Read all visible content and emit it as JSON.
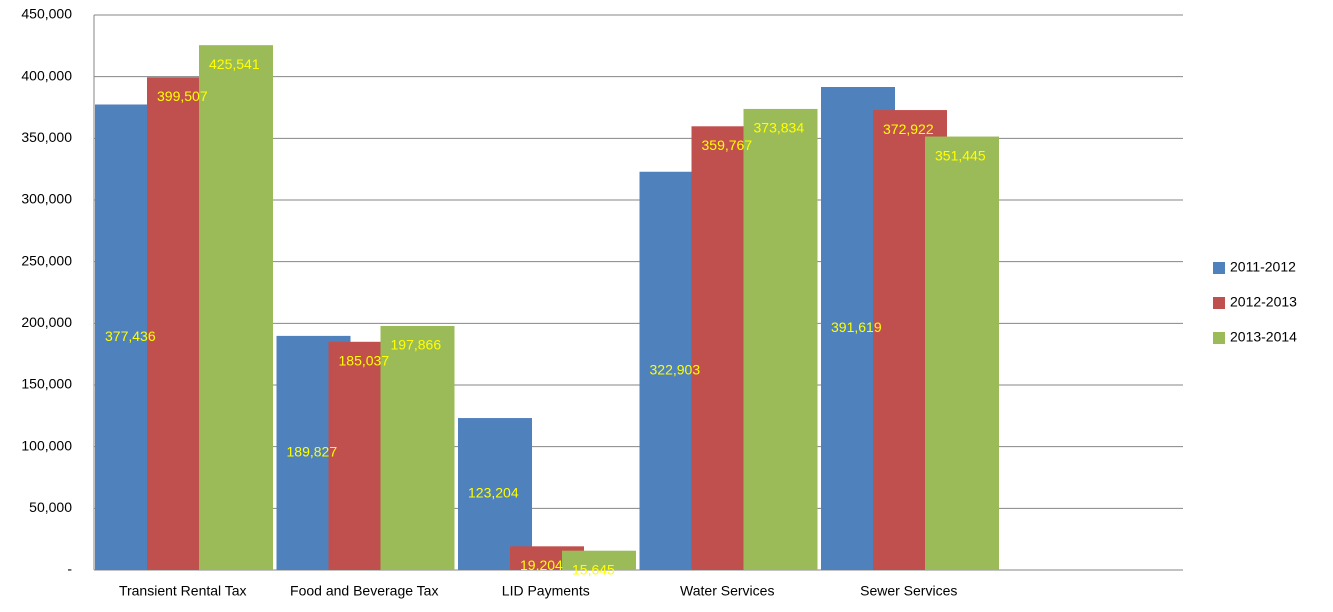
{
  "chart_data": {
    "type": "bar",
    "categories": [
      "Transient Rental Tax",
      "Food and Beverage Tax",
      "LID Payments",
      "Water Services",
      "Sewer Services",
      null
    ],
    "series": [
      {
        "name": "2011-2012",
        "color": "#4f81bd",
        "values": [
          377436,
          189827,
          123204,
          322903,
          391619,
          null
        ],
        "value_labels": [
          "377,436",
          "189,827",
          "123,204",
          "322,903",
          "391,619",
          null
        ]
      },
      {
        "name": "2012-2013",
        "color": "#c0504d",
        "values": [
          399507,
          185037,
          19204,
          359767,
          372922,
          null
        ],
        "value_labels": [
          "399,507",
          "185,037",
          "19,204",
          "359,767",
          "372,922",
          null
        ]
      },
      {
        "name": "2013-2014",
        "color": "#9bbb59",
        "values": [
          425541,
          197866,
          15645,
          373834,
          351445,
          null
        ],
        "value_labels": [
          "425,541",
          "197,866",
          "15,645",
          "373,834",
          "351,445",
          null
        ]
      }
    ],
    "value_label_color": "#ffff00",
    "ylim": [
      0,
      450000
    ],
    "yticks": [
      {
        "value": 0,
        "label": "-"
      },
      {
        "value": 50000,
        "label": "50,000"
      },
      {
        "value": 100000,
        "label": "100,000"
      },
      {
        "value": 150000,
        "label": "150,000"
      },
      {
        "value": 200000,
        "label": "200,000"
      },
      {
        "value": 250000,
        "label": "250,000"
      },
      {
        "value": 300000,
        "label": "300,000"
      },
      {
        "value": 350000,
        "label": "350,000"
      },
      {
        "value": 400000,
        "label": "400,000"
      },
      {
        "value": 450000,
        "label": "450,000"
      }
    ],
    "grid": true,
    "legend": "right"
  }
}
